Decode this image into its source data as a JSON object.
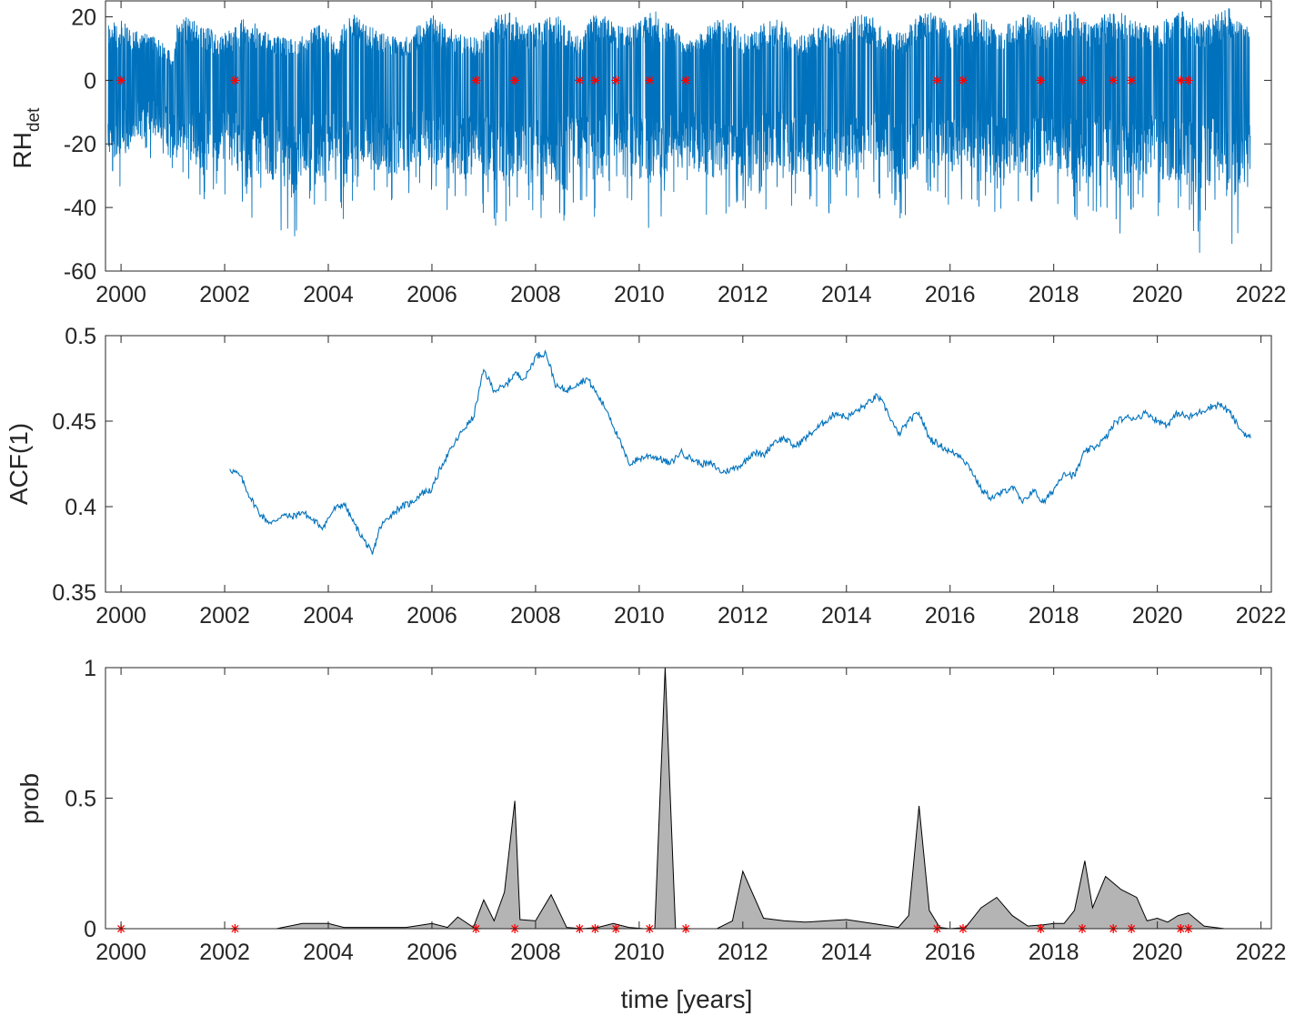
{
  "colors": {
    "series": "#0072BD",
    "marker": "#FF0000",
    "area_fill": "#B4B4B4",
    "area_edge": "#000000",
    "axis": "#262626"
  },
  "event_markers_years": [
    2000.0,
    2002.2,
    2006.85,
    2007.6,
    2008.85,
    2009.15,
    2009.55,
    2010.2,
    2010.9,
    2015.75,
    2016.25,
    2017.75,
    2018.55,
    2019.15,
    2019.5,
    2020.45,
    2020.6
  ],
  "chart_data": [
    {
      "type": "line",
      "ylabel": "RH",
      "ylabel_sub": "det",
      "xlim": [
        1999.7,
        2022.2
      ],
      "ylim": [
        -60,
        25
      ],
      "xticks": [
        "2000",
        "2002",
        "2004",
        "2006",
        "2008",
        "2010",
        "2012",
        "2014",
        "2016",
        "2018",
        "2020",
        "2022"
      ],
      "yticks": [
        "20",
        "0",
        "-20",
        "-40",
        "-60"
      ],
      "ytick_values": [
        20,
        0,
        -20,
        -40,
        -60
      ],
      "envelope": {
        "x": [
          1999.7,
          2000.0,
          2000.3,
          2000.6,
          2000.9,
          2001.0,
          2001.1,
          2001.3,
          2001.6,
          2001.9,
          2002.2,
          2002.4,
          2002.7,
          2003.0,
          2003.3,
          2003.6,
          2003.9,
          2004.2,
          2004.3,
          2004.5,
          2004.8,
          2005.1,
          2005.4,
          2005.7,
          2006.0,
          2006.3,
          2006.6,
          2006.9,
          2007.2,
          2007.5,
          2007.8,
          2008.1,
          2008.4,
          2008.7,
          2008.9,
          2009.1,
          2009.4,
          2009.7,
          2010.0,
          2010.3,
          2010.6,
          2010.9,
          2011.2,
          2011.5,
          2011.8,
          2012.1,
          2012.4,
          2012.7,
          2013.0,
          2013.3,
          2013.6,
          2013.9,
          2014.2,
          2014.5,
          2014.8,
          2015.1,
          2015.4,
          2015.7,
          2016.0,
          2016.3,
          2016.6,
          2016.9,
          2017.2,
          2017.5,
          2017.8,
          2018.1,
          2018.4,
          2018.7,
          2019.0,
          2019.3,
          2019.6,
          2019.9,
          2020.2,
          2020.5,
          2020.8,
          2021.1,
          2021.4,
          2021.7
        ],
        "upper": [
          18,
          19,
          16,
          14,
          12,
          6,
          20,
          21,
          18,
          14,
          17,
          21,
          16,
          14,
          13,
          16,
          18,
          10,
          20,
          21,
          17,
          15,
          13,
          17,
          21,
          17,
          15,
          13,
          20,
          22,
          17,
          19,
          21,
          15,
          14,
          21,
          20,
          17,
          20,
          22,
          18,
          12,
          15,
          20,
          18,
          14,
          18,
          20,
          13,
          16,
          19,
          14,
          21,
          20,
          16,
          15,
          21,
          22,
          17,
          21,
          22,
          16,
          19,
          22,
          17,
          20,
          22,
          18,
          21,
          22,
          19,
          17,
          20,
          22,
          18,
          21,
          23,
          17
        ],
        "lower": [
          -35,
          -38,
          -28,
          -25,
          -32,
          -45,
          -30,
          -36,
          -42,
          -35,
          -40,
          -50,
          -38,
          -45,
          -53,
          -40,
          -45,
          -35,
          -48,
          -50,
          -40,
          -42,
          -45,
          -35,
          -38,
          -42,
          -45,
          -40,
          -48,
          -45,
          -38,
          -45,
          -48,
          -42,
          -38,
          -45,
          -40,
          -35,
          -45,
          -48,
          -40,
          -38,
          -42,
          -45,
          -40,
          -45,
          -42,
          -38,
          -45,
          -40,
          -42,
          -45,
          -44,
          -42,
          -40,
          -45,
          -42,
          -38,
          -42,
          -44,
          -40,
          -45,
          -42,
          -44,
          -38,
          -42,
          -45,
          -47,
          -40,
          -55,
          -45,
          -42,
          -47,
          -45,
          -55,
          -45,
          -57,
          -45
        ]
      },
      "markers_y": 0
    },
    {
      "type": "line",
      "ylabel": "ACF(1)",
      "xlim": [
        1999.7,
        2022.2
      ],
      "ylim": [
        0.35,
        0.5
      ],
      "xticks": [
        "2000",
        "2002",
        "2004",
        "2006",
        "2008",
        "2010",
        "2012",
        "2014",
        "2016",
        "2018",
        "2020",
        "2022"
      ],
      "yticks": [
        "0.5",
        "0.45",
        "0.4",
        "0.35"
      ],
      "ytick_values": [
        0.5,
        0.45,
        0.4,
        0.35
      ],
      "x": [
        2002.1,
        2002.3,
        2002.5,
        2002.7,
        2002.9,
        2003.1,
        2003.3,
        2003.5,
        2003.7,
        2003.9,
        2004.1,
        2004.3,
        2004.5,
        2004.7,
        2004.85,
        2005.0,
        2005.2,
        2005.4,
        2005.6,
        2005.8,
        2006.0,
        2006.2,
        2006.4,
        2006.6,
        2006.8,
        2007.0,
        2007.2,
        2007.4,
        2007.6,
        2007.8,
        2008.0,
        2008.2,
        2008.4,
        2008.6,
        2008.8,
        2009.0,
        2009.2,
        2009.4,
        2009.6,
        2009.8,
        2010.0,
        2010.2,
        2010.4,
        2010.6,
        2010.8,
        2011.0,
        2011.2,
        2011.4,
        2011.6,
        2011.8,
        2012.0,
        2012.2,
        2012.4,
        2012.6,
        2012.8,
        2013.0,
        2013.2,
        2013.4,
        2013.6,
        2013.8,
        2014.0,
        2014.2,
        2014.4,
        2014.6,
        2014.8,
        2015.0,
        2015.2,
        2015.4,
        2015.6,
        2015.8,
        2016.0,
        2016.2,
        2016.4,
        2016.6,
        2016.8,
        2017.0,
        2017.2,
        2017.4,
        2017.6,
        2017.8,
        2018.0,
        2018.2,
        2018.4,
        2018.6,
        2018.8,
        2019.0,
        2019.2,
        2019.4,
        2019.6,
        2019.8,
        2020.0,
        2020.2,
        2020.4,
        2020.6,
        2020.8,
        2021.0,
        2021.2,
        2021.4,
        2021.6,
        2021.8
      ],
      "y": [
        0.422,
        0.418,
        0.405,
        0.395,
        0.39,
        0.395,
        0.394,
        0.397,
        0.392,
        0.388,
        0.398,
        0.402,
        0.39,
        0.38,
        0.372,
        0.388,
        0.395,
        0.4,
        0.402,
        0.408,
        0.41,
        0.425,
        0.435,
        0.445,
        0.452,
        0.48,
        0.468,
        0.47,
        0.478,
        0.475,
        0.488,
        0.49,
        0.47,
        0.468,
        0.472,
        0.475,
        0.465,
        0.455,
        0.44,
        0.425,
        0.428,
        0.43,
        0.428,
        0.425,
        0.432,
        0.428,
        0.425,
        0.425,
        0.42,
        0.422,
        0.425,
        0.432,
        0.43,
        0.438,
        0.44,
        0.435,
        0.44,
        0.445,
        0.45,
        0.455,
        0.452,
        0.456,
        0.46,
        0.465,
        0.455,
        0.442,
        0.45,
        0.455,
        0.44,
        0.436,
        0.432,
        0.43,
        0.422,
        0.41,
        0.405,
        0.408,
        0.412,
        0.402,
        0.41,
        0.402,
        0.41,
        0.42,
        0.418,
        0.432,
        0.435,
        0.44,
        0.45,
        0.452,
        0.452,
        0.455,
        0.45,
        0.448,
        0.455,
        0.452,
        0.455,
        0.458,
        0.46,
        0.455,
        0.445,
        0.44
      ]
    },
    {
      "type": "area",
      "ylabel": "prob",
      "xlabel": "time [years]",
      "xlim": [
        1999.7,
        2022.2
      ],
      "ylim": [
        0,
        1
      ],
      "xticks": [
        "2000",
        "2002",
        "2004",
        "2006",
        "2008",
        "2010",
        "2012",
        "2014",
        "2016",
        "2018",
        "2020",
        "2022"
      ],
      "yticks": [
        "1",
        "0.5",
        "0"
      ],
      "ytick_values": [
        1,
        0.5,
        0
      ],
      "x": [
        2000.0,
        2002.2,
        2003.0,
        2003.5,
        2004.0,
        2004.3,
        2005.0,
        2005.5,
        2006.0,
        2006.3,
        2006.5,
        2006.8,
        2007.0,
        2007.2,
        2007.4,
        2007.6,
        2007.7,
        2008.0,
        2008.3,
        2008.6,
        2008.9,
        2009.2,
        2009.5,
        2009.8,
        2010.1,
        2010.3,
        2010.5,
        2010.7,
        2010.9,
        2011.5,
        2011.8,
        2012.0,
        2012.4,
        2012.8,
        2013.2,
        2013.6,
        2014.0,
        2014.5,
        2015.0,
        2015.2,
        2015.4,
        2015.6,
        2015.8,
        2016.0,
        2016.3,
        2016.6,
        2016.9,
        2017.2,
        2017.5,
        2017.8,
        2018.0,
        2018.2,
        2018.4,
        2018.6,
        2018.75,
        2019.0,
        2019.3,
        2019.6,
        2019.8,
        2020.0,
        2020.2,
        2020.4,
        2020.6,
        2020.9,
        2021.1,
        2021.3,
        2021.7
      ],
      "y": [
        0,
        0,
        0,
        0.02,
        0.02,
        0.005,
        0.005,
        0.005,
        0.02,
        0.005,
        0.045,
        0.005,
        0.11,
        0.03,
        0.14,
        0.49,
        0.035,
        0.03,
        0.13,
        0.005,
        0,
        0.005,
        0.02,
        0.005,
        0,
        0,
        1.0,
        0,
        0,
        0,
        0.03,
        0.22,
        0.04,
        0.03,
        0.025,
        0.03,
        0.035,
        0.02,
        0.005,
        0.05,
        0.47,
        0.07,
        0.005,
        0,
        0.005,
        0.08,
        0.12,
        0.05,
        0.01,
        0.015,
        0.02,
        0.02,
        0.07,
        0.26,
        0.08,
        0.2,
        0.15,
        0.12,
        0.03,
        0.04,
        0.025,
        0.05,
        0.06,
        0.01,
        0.005,
        0,
        0
      ],
      "markers_y": 0
    }
  ]
}
